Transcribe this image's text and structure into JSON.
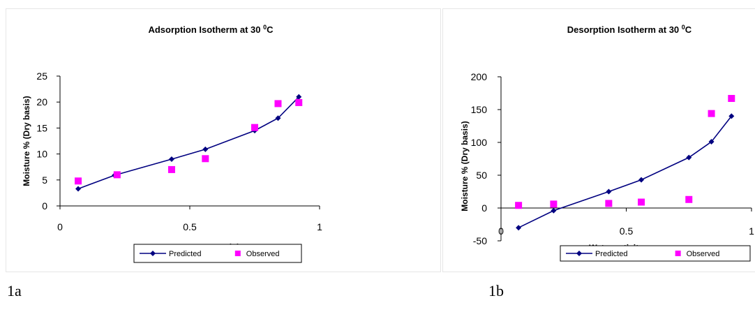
{
  "chart_data": [
    {
      "type": "line",
      "title": "Adsorption Isotherm at 30 ",
      "title_sup": "0",
      "title_unit": "C",
      "xlabel": "Water activity",
      "ylabel": "Moisture % (Dry basis)",
      "xlim": [
        0,
        1
      ],
      "ylim": [
        0,
        25
      ],
      "x_ticks": [
        0,
        0.5,
        1
      ],
      "x_tick_labels": [
        "0",
        "0.5",
        "1"
      ],
      "y_ticks": [
        0,
        5,
        10,
        15,
        20,
        25
      ],
      "y_tick_labels": [
        "0",
        "5",
        "10",
        "15",
        "20",
        "25"
      ],
      "grid": false,
      "legend_position": "bottom",
      "series": [
        {
          "name": "Predicted",
          "style": "line-diamond",
          "color": "#000080",
          "x": [
            0.07,
            0.21,
            0.43,
            0.56,
            0.75,
            0.84,
            0.92
          ],
          "y": [
            3.3,
            5.9,
            9.0,
            10.9,
            14.5,
            16.9,
            21.0
          ]
        },
        {
          "name": "Observed",
          "style": "square",
          "color": "#ff00ff",
          "x": [
            0.07,
            0.22,
            0.43,
            0.56,
            0.75,
            0.84,
            0.92
          ],
          "y": [
            4.8,
            6.0,
            7.0,
            9.1,
            15.1,
            19.7,
            19.9
          ]
        }
      ],
      "caption": "1a"
    },
    {
      "type": "line",
      "title": "Desorption Isotherm at 30 ",
      "title_sup": "0",
      "title_unit": "C",
      "xlabel": "Water activity",
      "ylabel": "Moisture % (Dry basis)",
      "xlim": [
        0,
        1
      ],
      "ylim": [
        -50,
        200
      ],
      "x_ticks": [
        0,
        0.5,
        1
      ],
      "x_tick_labels": [
        "0",
        "0.5",
        "1"
      ],
      "y_ticks": [
        -50,
        0,
        50,
        100,
        150,
        200
      ],
      "y_tick_labels": [
        "-50",
        "0",
        "50",
        "100",
        "150",
        "200"
      ],
      "grid": false,
      "legend_position": "bottom",
      "series": [
        {
          "name": "Predicted",
          "style": "line-diamond",
          "color": "#000080",
          "x": [
            0.07,
            0.21,
            0.43,
            0.56,
            0.75,
            0.84,
            0.92
          ],
          "y": [
            -30,
            -4,
            25,
            43,
            77,
            101,
            140
          ]
        },
        {
          "name": "Observed",
          "style": "square",
          "color": "#ff00ff",
          "x": [
            0.07,
            0.21,
            0.43,
            0.56,
            0.75,
            0.84,
            0.92
          ],
          "y": [
            4,
            6,
            7,
            9,
            13,
            144,
            167
          ]
        }
      ],
      "caption": "1b"
    }
  ]
}
